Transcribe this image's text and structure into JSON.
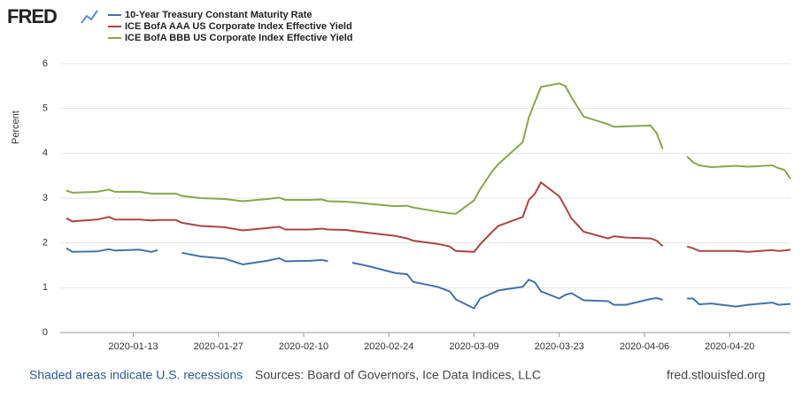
{
  "logo": "FRED",
  "footer": {
    "note": "Shaded areas indicate U.S. recessions",
    "sources": "Sources: Board of Governors, Ice Data Indices, LLC",
    "site": "fred.stlouisfed.org"
  },
  "chart_data": {
    "type": "line",
    "y_label": "Percent",
    "grid": true,
    "x": [
      "2020-01-02",
      "2020-01-03",
      "2020-01-07",
      "2020-01-09",
      "2020-01-10",
      "2020-01-14",
      "2020-01-16",
      "2020-01-17",
      "2020-01-20",
      "2020-01-21",
      "2020-01-24",
      "2020-01-28",
      "2020-01-31",
      "2020-02-04",
      "2020-02-06",
      "2020-02-07",
      "2020-02-11",
      "2020-02-13",
      "2020-02-14",
      "2020-02-17",
      "2020-02-18",
      "2020-02-21",
      "2020-02-25",
      "2020-02-27",
      "2020-02-28",
      "2020-03-03",
      "2020-03-05",
      "2020-03-06",
      "2020-03-09",
      "2020-03-10",
      "2020-03-12",
      "2020-03-13",
      "2020-03-17",
      "2020-03-18",
      "2020-03-19",
      "2020-03-20",
      "2020-03-23",
      "2020-03-24",
      "2020-03-25",
      "2020-03-27",
      "2020-03-31",
      "2020-04-01",
      "2020-04-03",
      "2020-04-07",
      "2020-04-08",
      "2020-04-09",
      "2020-04-10",
      "2020-04-13",
      "2020-04-14",
      "2020-04-15",
      "2020-04-17",
      "2020-04-21",
      "2020-04-23",
      "2020-04-27",
      "2020-04-28",
      "2020-04-29",
      "2020-04-30"
    ],
    "xlim": [
      "2020-01-01",
      "2020-04-30"
    ],
    "xticks": [
      "2020-01-13",
      "2020-01-27",
      "2020-02-10",
      "2020-02-24",
      "2020-03-09",
      "2020-03-23",
      "2020-04-06",
      "2020-04-20"
    ],
    "ylim": [
      0,
      6
    ],
    "yticks": [
      0,
      1,
      2,
      3,
      4,
      5,
      6
    ],
    "series": [
      {
        "name": "10-Year Treasury Constant Maturity Rate",
        "color": "#4572a7",
        "values": [
          1.88,
          1.8,
          1.81,
          1.86,
          1.83,
          1.85,
          1.8,
          1.84,
          null,
          1.78,
          1.7,
          1.65,
          1.52,
          1.6,
          1.66,
          1.59,
          1.6,
          1.62,
          1.59,
          null,
          1.56,
          1.47,
          1.33,
          1.3,
          1.13,
          1.02,
          0.92,
          0.74,
          0.54,
          0.76,
          0.88,
          0.94,
          1.02,
          1.18,
          1.12,
          0.92,
          0.76,
          0.84,
          0.88,
          0.72,
          0.7,
          0.62,
          0.62,
          0.75,
          0.77,
          0.73,
          null,
          0.76,
          0.76,
          0.63,
          0.65,
          0.58,
          0.62,
          0.67,
          0.62,
          0.63,
          0.64
        ]
      },
      {
        "name": "ICE BofA AAA US Corporate Index Effective Yield",
        "color": "#aa4643",
        "values": [
          2.55,
          2.48,
          2.52,
          2.58,
          2.52,
          2.52,
          2.5,
          2.51,
          2.51,
          2.45,
          2.38,
          2.35,
          2.28,
          2.33,
          2.36,
          2.3,
          2.3,
          2.32,
          2.3,
          2.29,
          2.27,
          2.22,
          2.16,
          2.1,
          2.05,
          1.98,
          1.92,
          1.82,
          1.8,
          1.97,
          2.25,
          2.38,
          2.58,
          2.96,
          3.1,
          3.35,
          3.04,
          2.8,
          2.55,
          2.25,
          2.1,
          2.15,
          2.12,
          2.1,
          2.05,
          1.93,
          null,
          1.92,
          1.88,
          1.82,
          1.82,
          1.82,
          1.8,
          1.84,
          1.82,
          1.83,
          1.85
        ]
      },
      {
        "name": "ICE BofA BBB US Corporate Index Effective Yield",
        "color": "#89a54e",
        "values": [
          3.17,
          3.12,
          3.14,
          3.19,
          3.14,
          3.14,
          3.1,
          3.1,
          3.1,
          3.05,
          3.0,
          2.98,
          2.93,
          2.98,
          3.01,
          2.96,
          2.96,
          2.97,
          2.93,
          2.92,
          2.91,
          2.87,
          2.82,
          2.83,
          2.79,
          2.7,
          2.66,
          2.65,
          2.95,
          3.2,
          3.6,
          3.76,
          4.25,
          4.8,
          5.15,
          5.48,
          5.56,
          5.5,
          5.25,
          4.82,
          4.65,
          4.59,
          4.6,
          4.62,
          4.45,
          4.1,
          null,
          3.93,
          3.8,
          3.73,
          3.69,
          3.72,
          3.7,
          3.73,
          3.67,
          3.63,
          3.43
        ]
      }
    ]
  }
}
